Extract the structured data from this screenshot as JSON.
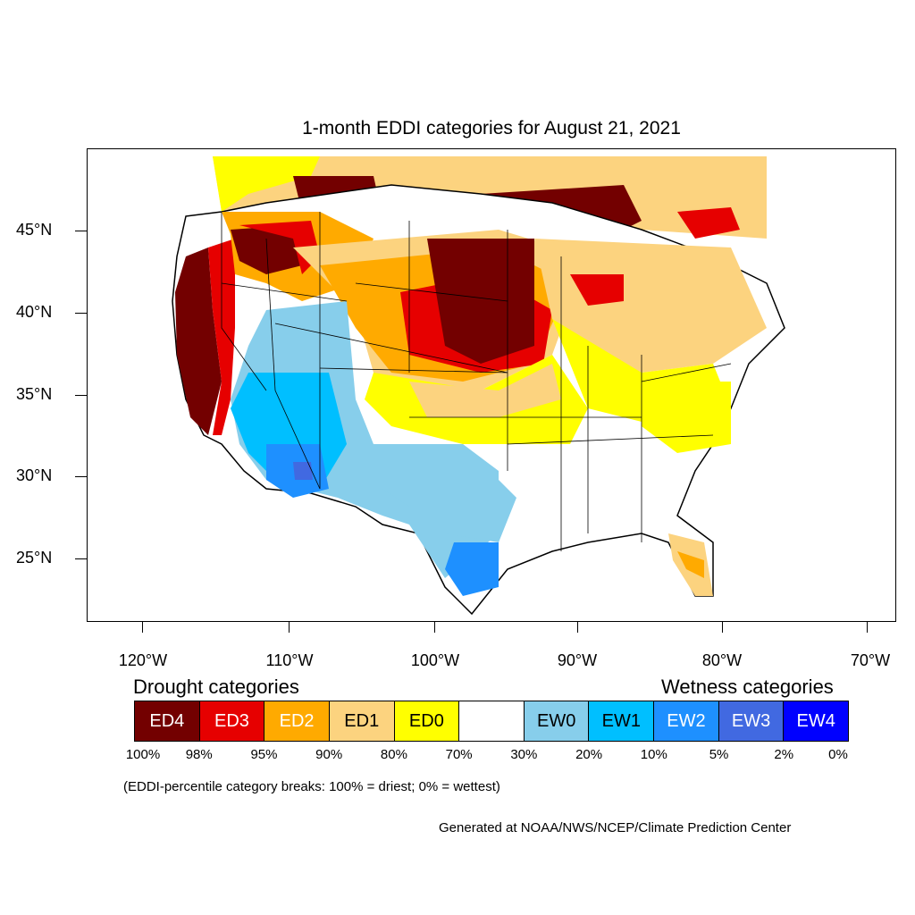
{
  "title": "1-month EDDI categories for August 21, 2021",
  "lat_labels": [
    "45°N",
    "40°N",
    "35°N",
    "30°N",
    "25°N"
  ],
  "lon_labels": [
    "120°W",
    "110°W",
    "100°W",
    "90°W",
    "80°W",
    "70°W"
  ],
  "drought_header": "Drought categories",
  "wetness_header": "Wetness categories",
  "legend": [
    {
      "label": "ED4",
      "color": "#730000",
      "text_color": "#ffffff"
    },
    {
      "label": "ED3",
      "color": "#e60000",
      "text_color": "#ffffff"
    },
    {
      "label": "ED2",
      "color": "#ffaa00",
      "text_color": "#ffffff"
    },
    {
      "label": "ED1",
      "color": "#fcd37f",
      "text_color": "#000000"
    },
    {
      "label": "ED0",
      "color": "#ffff00",
      "text_color": "#000000"
    },
    {
      "label": "",
      "color": "#ffffff",
      "text_color": "#000000"
    },
    {
      "label": "EW0",
      "color": "#87ceeb",
      "text_color": "#000000"
    },
    {
      "label": "EW1",
      "color": "#00bfff",
      "text_color": "#000000"
    },
    {
      "label": "EW2",
      "color": "#1e90ff",
      "text_color": "#ffffff"
    },
    {
      "label": "EW3",
      "color": "#4169e1",
      "text_color": "#ffffff"
    },
    {
      "label": "EW4",
      "color": "#0000ff",
      "text_color": "#ffffff"
    }
  ],
  "percent_breaks": [
    "100%",
    "98%",
    "95%",
    "90%",
    "80%",
    "70%",
    "30%",
    "20%",
    "10%",
    "5%",
    "2%",
    "0%"
  ],
  "note": "(EDDI-percentile category breaks: 100% = driest; 0% = wettest)",
  "credit": "Generated at NOAA/NWS/NCEP/Climate Prediction Center"
}
